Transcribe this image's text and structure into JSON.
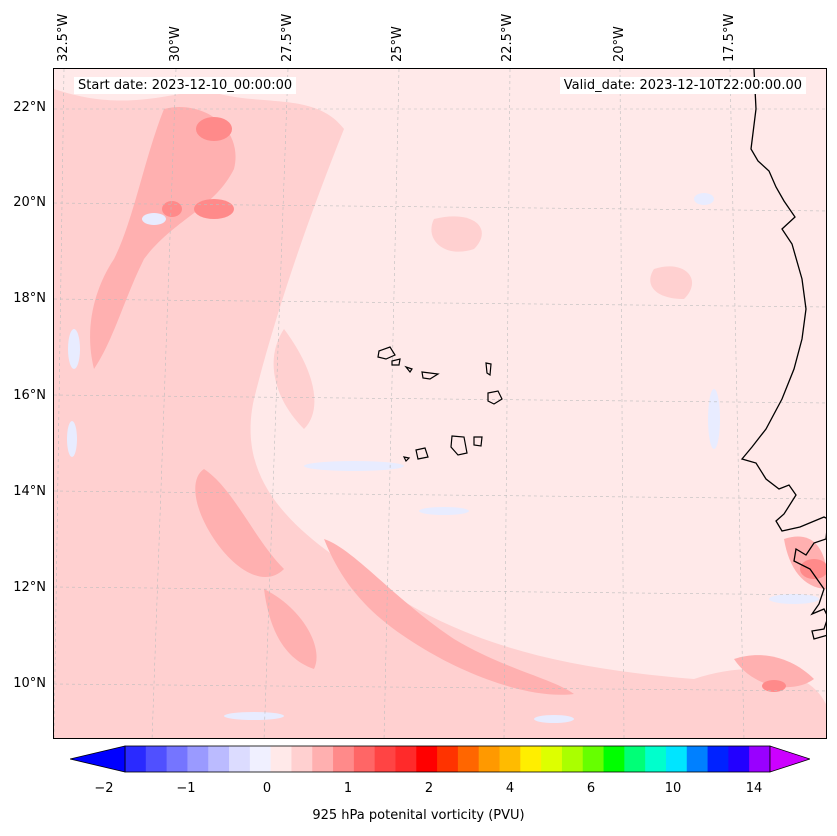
{
  "map": {
    "start_date": "Start date: 2023-12-10_00:00:00",
    "valid_date": "Valid_date: 2023-12-10T22:00:00.00",
    "lon_labels": [
      "32.5°W",
      "30°W",
      "27.5°W",
      "25°W",
      "22.5°W",
      "20°W",
      "17.5°W"
    ],
    "lat_labels": [
      "22°N",
      "20°N",
      "18°N",
      "16°N",
      "14°N",
      "12°N",
      "10°N"
    ],
    "background_color": "#ffe9e9"
  },
  "colorbar": {
    "caption": "925 hPa potenital vorticity (PVU)",
    "tick_labels": [
      "−2",
      "−1",
      "0",
      "1",
      "2",
      "4",
      "6",
      "10",
      "14"
    ],
    "colors": [
      "#0000ff",
      "#2a2aff",
      "#5050ff",
      "#7575ff",
      "#9a9aff",
      "#bbbbff",
      "#dcdcff",
      "#f0f0ff",
      "#ffe9e9",
      "#ffd0d0",
      "#ffb0b0",
      "#ff8a8a",
      "#ff6666",
      "#ff4444",
      "#ff2a2a",
      "#ff0000",
      "#ff3300",
      "#ff6600",
      "#ff9900",
      "#ffbb00",
      "#ffee00",
      "#ddff00",
      "#aaff00",
      "#66ff00",
      "#00ff00",
      "#00ff77",
      "#00ffcc",
      "#00e5ff",
      "#0080ff",
      "#0022ff",
      "#2200ff",
      "#9900ff",
      "#cc00ff"
    ]
  }
}
